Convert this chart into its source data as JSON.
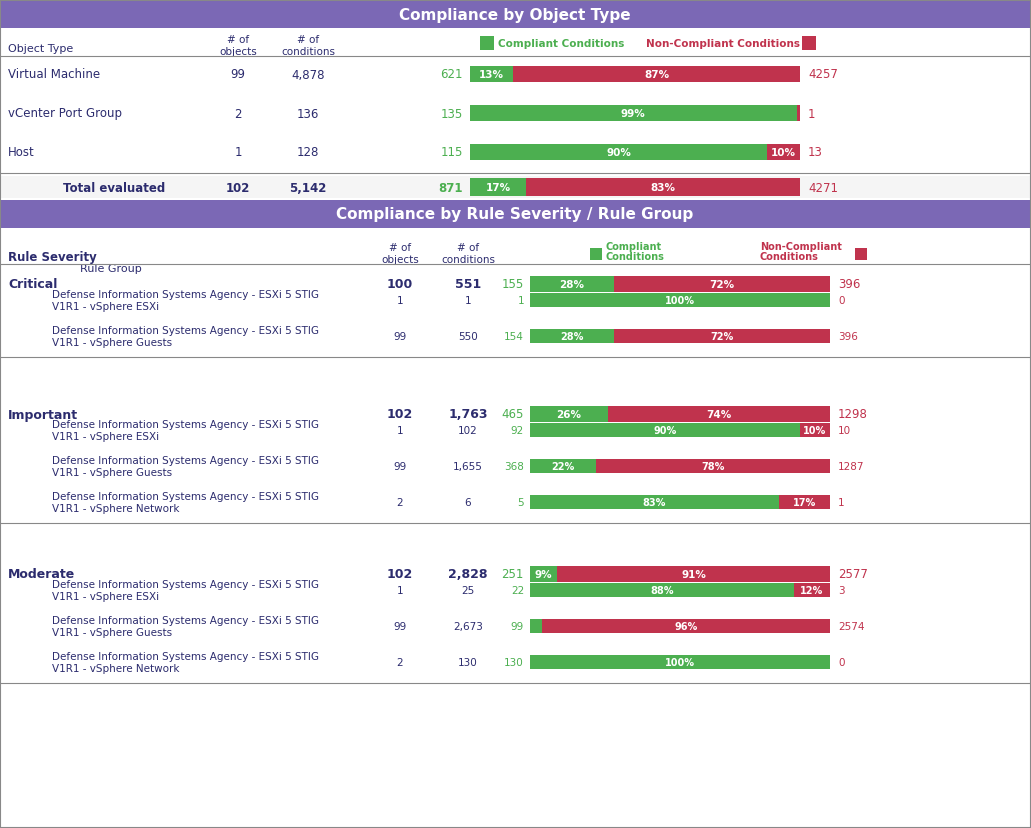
{
  "title1": "Compliance by Object Type",
  "title2": "Compliance by Rule Severity / Rule Group",
  "header_bg": "#7b68b5",
  "header_text": "#ffffff",
  "section_header_bg": "#7b68b5",
  "green": "#4caf50",
  "red": "#c0334d",
  "dark_green": "#2e7d32",
  "compliant_color": "#4caf50",
  "noncompliant_color": "#c0334d",
  "compliant_label_color": "#4caf50",
  "noncompliant_label_color": "#c0334d",
  "object_type_rows": [
    {
      "name": "Virtual Machine",
      "objects": "99",
      "conditions": "4,878",
      "compliant": 621,
      "pct_c": 13,
      "pct_nc": 87,
      "non_compliant": 4257
    },
    {
      "name": "vCenter Port Group",
      "objects": "2",
      "conditions": "136",
      "compliant": 135,
      "pct_c": 99,
      "pct_nc": 1,
      "non_compliant": 1
    },
    {
      "name": "Host",
      "objects": "1",
      "conditions": "128",
      "compliant": 115,
      "pct_c": 90,
      "pct_nc": 10,
      "non_compliant": 13
    }
  ],
  "object_type_total": {
    "label": "Total evaluated",
    "objects": "102",
    "conditions": "5,142",
    "compliant": 871,
    "pct_c": 17,
    "pct_nc": 83,
    "non_compliant": 4271
  },
  "severity_sections": [
    {
      "name": "Critical",
      "objects": "100",
      "conditions": "551",
      "compliant": 155,
      "pct_c": 28,
      "pct_nc": 72,
      "non_compliant": 396,
      "groups": [
        {
          "name": "Defense Information Systems Agency - ESXi 5 STIG\nV1R1 - vSphere ESXi",
          "objects": "1",
          "conditions": "1",
          "compliant": 1,
          "pct_c": 100,
          "pct_nc": 0,
          "non_compliant": 0
        },
        {
          "name": "Defense Information Systems Agency - ESXi 5 STIG\nV1R1 - vSphere Guests",
          "objects": "99",
          "conditions": "550",
          "compliant": 154,
          "pct_c": 28,
          "pct_nc": 72,
          "non_compliant": 396
        }
      ]
    },
    {
      "name": "Important",
      "objects": "102",
      "conditions": "1,763",
      "compliant": 465,
      "pct_c": 26,
      "pct_nc": 74,
      "non_compliant": 1298,
      "groups": [
        {
          "name": "Defense Information Systems Agency - ESXi 5 STIG\nV1R1 - vSphere ESXi",
          "objects": "1",
          "conditions": "102",
          "compliant": 92,
          "pct_c": 90,
          "pct_nc": 10,
          "non_compliant": 10
        },
        {
          "name": "Defense Information Systems Agency - ESXi 5 STIG\nV1R1 - vSphere Guests",
          "objects": "99",
          "conditions": "1,655",
          "compliant": 368,
          "pct_c": 22,
          "pct_nc": 78,
          "non_compliant": 1287
        },
        {
          "name": "Defense Information Systems Agency - ESXi 5 STIG\nV1R1 - vSphere Network",
          "objects": "2",
          "conditions": "6",
          "compliant": 5,
          "pct_c": 83,
          "pct_nc": 17,
          "non_compliant": 1
        }
      ]
    },
    {
      "name": "Moderate",
      "objects": "102",
      "conditions": "2,828",
      "compliant": 251,
      "pct_c": 9,
      "pct_nc": 91,
      "non_compliant": 2577,
      "groups": [
        {
          "name": "Defense Information Systems Agency - ESXi 5 STIG\nV1R1 - vSphere ESXi",
          "objects": "1",
          "conditions": "25",
          "compliant": 22,
          "pct_c": 88,
          "pct_nc": 12,
          "non_compliant": 3
        },
        {
          "name": "Defense Information Systems Agency - ESXi 5 STIG\nV1R1 - vSphere Guests",
          "objects": "99",
          "conditions": "2,673",
          "compliant": 99,
          "pct_c": 4,
          "pct_nc": 96,
          "non_compliant": 2574
        },
        {
          "name": "Defense Information Systems Agency - ESXi 5 STIG\nV1R1 - vSphere Network",
          "objects": "2",
          "conditions": "130",
          "compliant": 130,
          "pct_c": 100,
          "pct_nc": 0,
          "non_compliant": 0
        }
      ]
    }
  ]
}
